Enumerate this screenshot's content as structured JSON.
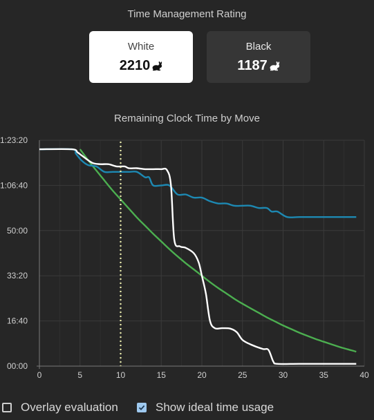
{
  "rating_section": {
    "title": "Time Management Rating",
    "white": {
      "label": "White",
      "rating": "2210",
      "icon": "rabbit-icon"
    },
    "black": {
      "label": "Black",
      "rating": "1187",
      "icon": "rabbit-icon"
    }
  },
  "controls": {
    "overlay_label": "Overlay evaluation",
    "overlay_checked": false,
    "ideal_label": "Show ideal time usage",
    "ideal_checked": true
  },
  "colors": {
    "white_series": "#ffffff",
    "black_series": "#1d89b3",
    "ideal_series": "#4caf50",
    "current_move_marker": "#f1f3b0",
    "background": "#262626"
  },
  "chart_data": {
    "type": "line",
    "title": "Remaining Clock Time by Move",
    "xlabel": "",
    "ylabel": "",
    "xlim": [
      0,
      40
    ],
    "ylim": [
      0,
      5000
    ],
    "x_ticks": [
      0,
      5,
      10,
      15,
      20,
      25,
      30,
      35,
      40
    ],
    "y_ticks": [
      {
        "value": 0,
        "label": "00:00"
      },
      {
        "value": 1000,
        "label": "16:40"
      },
      {
        "value": 2000,
        "label": "33:20"
      },
      {
        "value": 3000,
        "label": "50:00"
      },
      {
        "value": 4000,
        "label": "1:06:40"
      },
      {
        "value": 5000,
        "label": "1:23:20"
      }
    ],
    "grid": true,
    "current_move": 10,
    "series": [
      {
        "key": "white",
        "color": "#ffffff",
        "points": [
          [
            0,
            4800
          ],
          [
            4,
            4800
          ],
          [
            4.7,
            4730
          ],
          [
            5.3,
            4650
          ],
          [
            6.5,
            4500
          ],
          [
            7.5,
            4470
          ],
          [
            8.5,
            4470
          ],
          [
            9.5,
            4420
          ],
          [
            10.5,
            4420
          ],
          [
            11,
            4380
          ],
          [
            12,
            4380
          ],
          [
            13,
            4360
          ],
          [
            14,
            4360
          ],
          [
            15,
            4360
          ],
          [
            15.7,
            4340
          ],
          [
            16.2,
            4000
          ],
          [
            16.6,
            2800
          ],
          [
            17.3,
            2650
          ],
          [
            18,
            2620
          ],
          [
            19,
            2500
          ],
          [
            19.6,
            2300
          ],
          [
            20,
            2000
          ],
          [
            20.5,
            1600
          ],
          [
            21,
            1000
          ],
          [
            21.6,
            840
          ],
          [
            22.5,
            840
          ],
          [
            23.5,
            830
          ],
          [
            24.3,
            750
          ],
          [
            25,
            580
          ],
          [
            26,
            480
          ],
          [
            27.5,
            380
          ],
          [
            28.2,
            360
          ],
          [
            28.8,
            100
          ],
          [
            29.3,
            50
          ],
          [
            32,
            50
          ],
          [
            36,
            50
          ],
          [
            39,
            50
          ]
        ]
      },
      {
        "key": "black",
        "color": "#1d89b3",
        "points": [
          [
            0,
            4800
          ],
          [
            4,
            4800
          ],
          [
            4.5,
            4700
          ],
          [
            5.2,
            4550
          ],
          [
            6,
            4450
          ],
          [
            7,
            4420
          ],
          [
            8,
            4300
          ],
          [
            9,
            4300
          ],
          [
            10,
            4300
          ],
          [
            11,
            4300
          ],
          [
            12,
            4300
          ],
          [
            13,
            4180
          ],
          [
            13.5,
            4180
          ],
          [
            14,
            4000
          ],
          [
            15,
            4000
          ],
          [
            16,
            4000
          ],
          [
            17,
            3800
          ],
          [
            18,
            3800
          ],
          [
            19,
            3730
          ],
          [
            20,
            3730
          ],
          [
            21,
            3650
          ],
          [
            22,
            3600
          ],
          [
            23,
            3600
          ],
          [
            24,
            3550
          ],
          [
            25,
            3550
          ],
          [
            26,
            3550
          ],
          [
            27,
            3500
          ],
          [
            28,
            3500
          ],
          [
            28.6,
            3420
          ],
          [
            29.3,
            3420
          ],
          [
            30.5,
            3300
          ],
          [
            32,
            3300
          ],
          [
            35,
            3300
          ],
          [
            39,
            3300
          ]
        ]
      },
      {
        "key": "ideal",
        "color": "#4caf50",
        "points": [
          [
            5,
            4800
          ],
          [
            6,
            4560
          ],
          [
            7,
            4330
          ],
          [
            8,
            4110
          ],
          [
            9,
            3890
          ],
          [
            10,
            3690
          ],
          [
            11,
            3490
          ],
          [
            12,
            3290
          ],
          [
            13,
            3110
          ],
          [
            14,
            2930
          ],
          [
            15,
            2760
          ],
          [
            16,
            2590
          ],
          [
            17,
            2430
          ],
          [
            18,
            2280
          ],
          [
            19,
            2140
          ],
          [
            20,
            2000
          ],
          [
            21,
            1860
          ],
          [
            22,
            1730
          ],
          [
            23,
            1610
          ],
          [
            24,
            1490
          ],
          [
            25,
            1380
          ],
          [
            26,
            1280
          ],
          [
            27,
            1180
          ],
          [
            28,
            1080
          ],
          [
            29,
            990
          ],
          [
            30,
            900
          ],
          [
            31,
            820
          ],
          [
            32,
            740
          ],
          [
            33,
            670
          ],
          [
            34,
            600
          ],
          [
            35,
            540
          ],
          [
            36,
            480
          ],
          [
            37,
            420
          ],
          [
            38,
            370
          ],
          [
            39,
            320
          ]
        ]
      }
    ]
  }
}
